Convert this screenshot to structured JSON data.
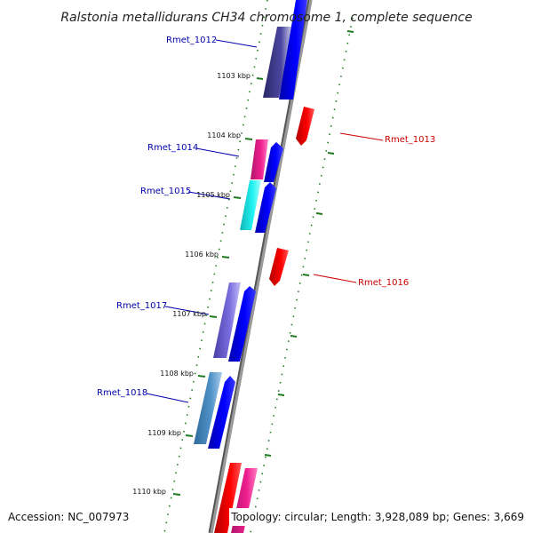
{
  "title": "Ralstonia metallidurans CH34 chromosome 1, complete sequence",
  "footer": {
    "accession": "Accession: NC_007973",
    "summary": "Topology: circular; Length: 3,928,089 bp; Genes: 3,669"
  },
  "ticks": [
    {
      "label": "1103 kbp"
    },
    {
      "label": "1104 kbp"
    },
    {
      "label": "1105 kbp"
    },
    {
      "label": "1106 kbp"
    },
    {
      "label": "1107 kbp"
    },
    {
      "label": "1108 kbp"
    },
    {
      "label": "1109 kbp"
    },
    {
      "label": "1110 kbp"
    }
  ],
  "gene_labels": [
    {
      "name": "Rmet_1012",
      "strand": "forward"
    },
    {
      "name": "Rmet_1013",
      "strand": "reverse"
    },
    {
      "name": "Rmet_1014",
      "strand": "forward"
    },
    {
      "name": "Rmet_1015",
      "strand": "forward"
    },
    {
      "name": "Rmet_1016",
      "strand": "reverse"
    },
    {
      "name": "Rmet_1017",
      "strand": "forward"
    },
    {
      "name": "Rmet_1018",
      "strand": "forward"
    }
  ],
  "colors": {
    "forward_label": "#0000aa",
    "reverse_label": "#cc0000",
    "backbone": "#888888",
    "tick": "#1f7a1f",
    "cds_forward": "#0000ee",
    "cds_reverse": "#ee0000",
    "cog_1012": "#3a3580",
    "cog_1014": "#e0208a",
    "cog_1015": "#22e5e5",
    "cog_1017": "#6b5fc9",
    "cog_1018": "#4a87bf",
    "cog_bottom_red": "#e00000",
    "cog_bottom_pink": "#ee3ca0"
  }
}
